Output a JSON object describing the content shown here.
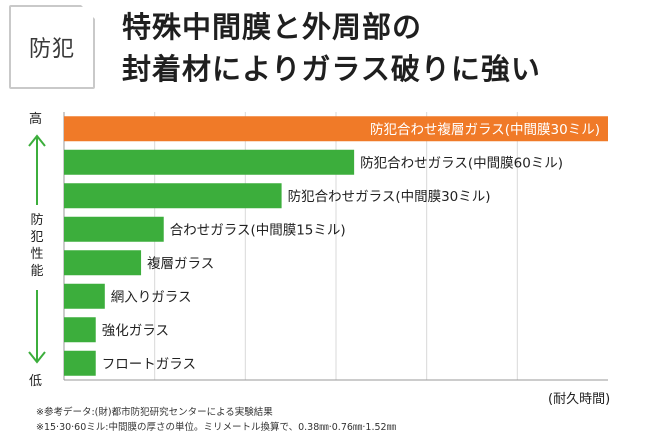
{
  "badge": "防犯",
  "title_lines": [
    "特殊中間膜と外周部の",
    "封着材によりガラス破りに強い"
  ],
  "colors": {
    "highlight": "#f07a28",
    "bar": "#3cae3c",
    "arrow": "#3cae3c",
    "grid": "#d9d9d9",
    "axis": "#999999"
  },
  "chart_data": {
    "type": "bar",
    "orientation": "horizontal",
    "title": "特殊中間膜と外周部の封着材によりガラス破りに強い",
    "ylabel": "防犯性能",
    "y_high": "高",
    "y_low": "低",
    "xlabel": "(耐久時間)",
    "grid": true,
    "xlim": [
      0,
      6
    ],
    "categories": [
      "防犯合わせ複層ガラス(中間膜30ミル)",
      "防犯合わせガラス(中間膜60ミル)",
      "防犯合わせガラス(中間膜30ミル)",
      "合わせガラス(中間膜15ミル)",
      "複層ガラス",
      "網入りガラス",
      "強化ガラス",
      "フロートガラス"
    ],
    "values": [
      6.0,
      3.2,
      2.4,
      1.1,
      0.85,
      0.45,
      0.35,
      0.35
    ],
    "highlight_index": 0
  },
  "notes": [
    "※参考データ:(財)都市防犯研究センターによる実験結果",
    "※15·30·60ミル:中間膜の厚さの単位。ミリメートル換算で、0.38㎜·0.76㎜·1.52㎜"
  ]
}
